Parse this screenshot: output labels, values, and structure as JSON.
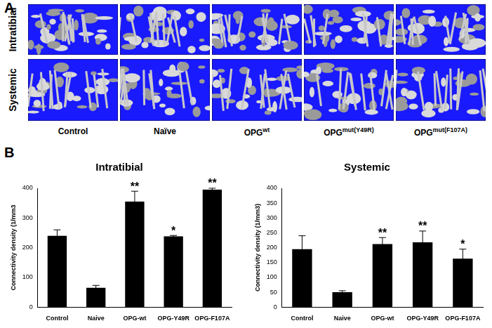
{
  "panel_a": {
    "label": "A",
    "rows": [
      "Intratibial",
      "Systemic"
    ],
    "columns": [
      {
        "text": "Control"
      },
      {
        "text": "Naïve"
      },
      {
        "text": "OPG",
        "sup": "wt"
      },
      {
        "text": "OPG",
        "sup": "mut(Y49R)"
      },
      {
        "text": "OPG",
        "sup": "mut(F107A)"
      }
    ]
  },
  "panel_b_label": "B",
  "chart_data": [
    {
      "type": "bar",
      "title": "Intratibial",
      "y_label": "Connectivity density (1/mm3",
      "categories": [
        "Control",
        "Naive",
        "OPG-wt",
        "OPG-Y49R",
        "OPG-F107A"
      ],
      "values": [
        240,
        65,
        355,
        238,
        395
      ],
      "errors": [
        20,
        8,
        35,
        3,
        5
      ],
      "annotations": [
        null,
        null,
        "**",
        "*",
        "**"
      ],
      "color": "#000000",
      "ylim": [
        0,
        400
      ],
      "yticks": [
        0,
        100,
        200,
        300,
        400
      ],
      "grid": false
    },
    {
      "type": "bar",
      "title": "Systemic",
      "y_label": "Connectivity density (1/mm3)",
      "categories": [
        "Control",
        "Naive",
        "OPG-wt",
        "OPG-Y49R",
        "OPG-F107A"
      ],
      "values": [
        195,
        50,
        212,
        218,
        163
      ],
      "errors": [
        45,
        5,
        22,
        38,
        32
      ],
      "annotations": [
        null,
        null,
        "**",
        "**",
        "*"
      ],
      "color": "#000000",
      "ylim": [
        0,
        400
      ],
      "yticks": [
        0,
        50,
        100,
        150,
        200,
        250,
        300,
        350,
        400
      ],
      "grid": false
    }
  ]
}
